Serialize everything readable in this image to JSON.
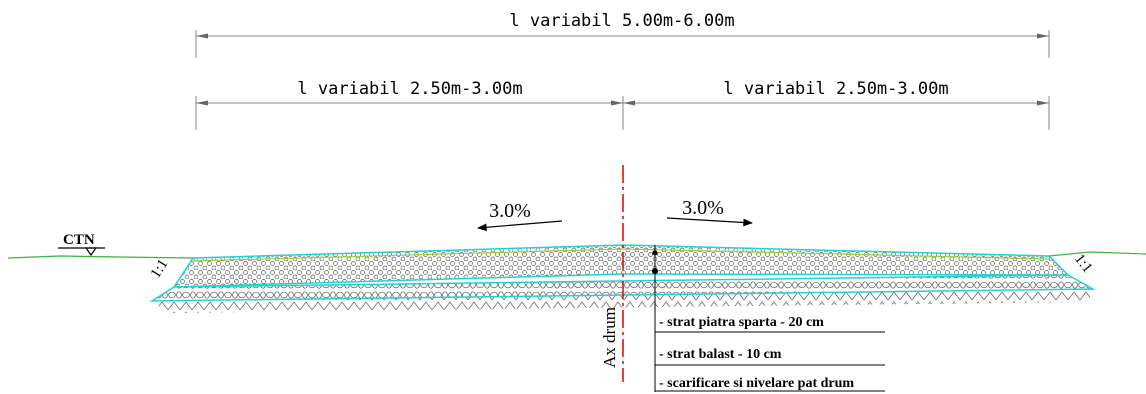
{
  "dimensions": {
    "overall": "l variabil 5.00m-6.00m",
    "left": "l variabil 2.50m-3.00m",
    "right": "l variabil 2.50m-3.00m"
  },
  "slopes": {
    "left": "3.0%",
    "right": "3.0%"
  },
  "terrain_label": "CTN",
  "embankment_ratio": {
    "left": "1:1",
    "right": "1:1"
  },
  "axis_label": "Ax drum",
  "layers": [
    "-  strat piatra sparta - 20 cm",
    "-  strat balast - 10 cm",
    "-  scarificare si nivelare pat drum"
  ],
  "colors": {
    "terrain": "#3cb43c",
    "layer_outline": "#22d3d3",
    "axis": "#e00000",
    "dimension": "#000000"
  }
}
